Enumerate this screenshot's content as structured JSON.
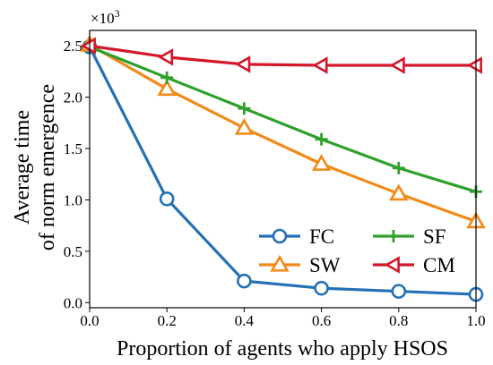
{
  "chart_data": {
    "type": "line",
    "xlabel": "Proportion of agents who apply HSOS",
    "ylabel_line1": "Average time",
    "ylabel_line2": "of norm emergence",
    "multiplier_base": "×10",
    "multiplier_exp": "3",
    "xlim": [
      0.0,
      1.0
    ],
    "ylim": [
      -0.05,
      2.65
    ],
    "xticks": [
      "0.0",
      "0.2",
      "0.4",
      "0.6",
      "0.8",
      "1.0"
    ],
    "yticks": [
      "0.0",
      "0.5",
      "1.0",
      "1.5",
      "2.0",
      "2.5"
    ],
    "grid": false,
    "legend_position": "lower-right",
    "x": [
      0.0,
      0.2,
      0.4,
      0.6,
      0.8,
      1.0
    ],
    "series": [
      {
        "name": "FC",
        "color": "#2471b5",
        "marker": "circle",
        "values": [
          2.49,
          1.01,
          0.21,
          0.14,
          0.11,
          0.08
        ]
      },
      {
        "name": "SW",
        "color": "#f28a17",
        "marker": "triangle-up",
        "values": [
          2.51,
          2.08,
          1.7,
          1.35,
          1.06,
          0.79
        ]
      },
      {
        "name": "SF",
        "color": "#2fa02c",
        "marker": "plus",
        "values": [
          2.49,
          2.19,
          1.89,
          1.59,
          1.31,
          1.08
        ]
      },
      {
        "name": "CM",
        "color": "#d4172a",
        "marker": "triangle-left",
        "values": [
          2.5,
          2.39,
          2.32,
          2.31,
          2.31,
          2.31
        ]
      }
    ]
  }
}
